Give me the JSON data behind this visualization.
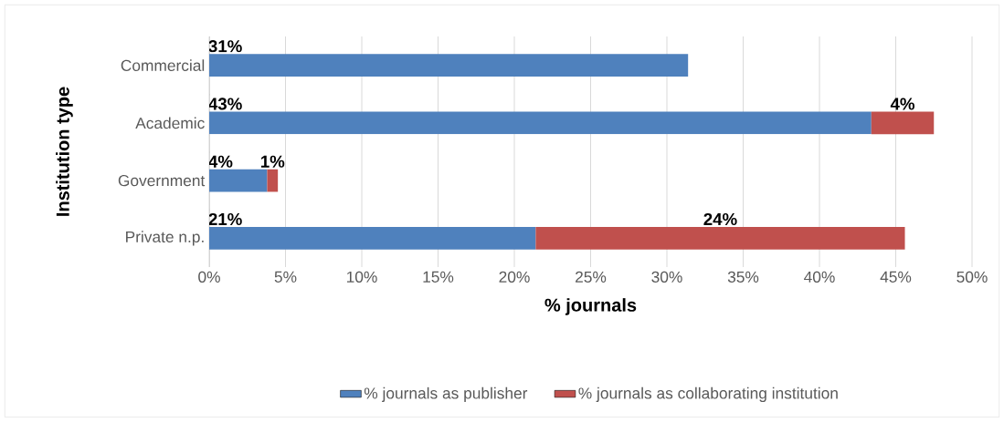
{
  "chart_data": {
    "type": "bar",
    "orientation": "horizontal",
    "stacked": true,
    "xlabel": "% journals",
    "ylabel": "Institution type",
    "categories": [
      "Commercial",
      "Academic",
      "Government",
      "Private n.p."
    ],
    "series": [
      {
        "name": "% journals as publisher",
        "color": "#4f81bd",
        "values": [
          31.4,
          43.4,
          3.8,
          21.4
        ],
        "value_labels": [
          "31%",
          "43%",
          "4%",
          "21%"
        ]
      },
      {
        "name": "% journals as collaborating institution",
        "color": "#c0504d",
        "values": [
          null,
          4.1,
          0.7,
          24.2
        ],
        "value_labels": [
          null,
          "4%",
          "1%",
          "24%"
        ]
      }
    ],
    "xlim": [
      0,
      50
    ],
    "xticks": [
      {
        "value": 0,
        "label": "0%"
      },
      {
        "value": 5,
        "label": "5%"
      },
      {
        "value": 10,
        "label": "10%"
      },
      {
        "value": 15,
        "label": "15%"
      },
      {
        "value": 20,
        "label": "20%"
      },
      {
        "value": 25,
        "label": "25%"
      },
      {
        "value": 30,
        "label": "30%"
      },
      {
        "value": 35,
        "label": "35%"
      },
      {
        "value": 40,
        "label": "40%"
      },
      {
        "value": 45,
        "label": "45%"
      },
      {
        "value": 50,
        "label": "50%"
      }
    ],
    "grid": "x",
    "legend": "bottom"
  }
}
